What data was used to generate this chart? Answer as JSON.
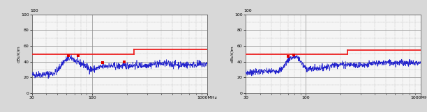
{
  "fig_bg_color": "#d8d8d8",
  "plot_bg_color": "#f5f5f5",
  "major_grid_color": "#888888",
  "minor_grid_color": "#aaaaaa",
  "blue_line_color": "#2222cc",
  "red_line_color": "#ee2020",
  "red_marker_color": "#dd0000",
  "ylabel": "dBuV/m",
  "xmin": 30,
  "xmax": 1000,
  "ymin": 0,
  "ymax": 100,
  "yticks": [
    0,
    20,
    40,
    60,
    80,
    100
  ],
  "chart1_limit_low": 49,
  "chart1_limit_high": 56,
  "chart1_limit_break": 230,
  "chart2_limit_low": 49,
  "chart2_limit_high": 55,
  "chart2_limit_break": 230,
  "chart1_seed": 42,
  "chart2_seed": 7
}
